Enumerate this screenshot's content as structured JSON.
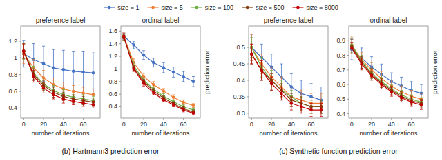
{
  "chart_data": [
    {
      "type": "line",
      "title": "preference label",
      "subtitle": "(b) Hartmann3 prediction error",
      "xlabel": "number of iterations",
      "marker": "circle",
      "x": [
        0,
        10,
        20,
        30,
        40,
        50,
        60,
        70
      ],
      "xlim": [
        -3,
        77
      ],
      "xticks": [
        0,
        20,
        40,
        60
      ],
      "ylim": [
        0.28,
        1.38
      ],
      "yticks": [
        0.4,
        0.6,
        0.8,
        1,
        1.2
      ],
      "series": [
        {
          "name": "size = 1",
          "color": "#4472c4",
          "values": [
            1.05,
            0.98,
            0.93,
            0.88,
            0.86,
            0.84,
            0.83,
            0.82
          ],
          "errors": [
            0.16,
            0.19,
            0.21,
            0.22,
            0.23,
            0.24,
            0.25,
            0.25
          ]
        },
        {
          "name": "size = 5",
          "color": "#ed7d31",
          "values": [
            1.05,
            0.88,
            0.76,
            0.68,
            0.63,
            0.6,
            0.58,
            0.56
          ],
          "errors": [
            0.12,
            0.1,
            0.09,
            0.08,
            0.08,
            0.07,
            0.07,
            0.07
          ]
        },
        {
          "name": "size = 100",
          "color": "#70ad47",
          "values": [
            1.08,
            0.82,
            0.69,
            0.61,
            0.56,
            0.53,
            0.51,
            0.49
          ],
          "errors": [
            0.1,
            0.08,
            0.07,
            0.06,
            0.06,
            0.05,
            0.05,
            0.05
          ]
        },
        {
          "name": "size = 500",
          "color": "#843c0c",
          "values": [
            1.08,
            0.8,
            0.67,
            0.59,
            0.54,
            0.51,
            0.49,
            0.47
          ],
          "errors": [
            0.09,
            0.07,
            0.06,
            0.06,
            0.05,
            0.05,
            0.05,
            0.05
          ]
        },
        {
          "name": "size = 8000",
          "color": "#c00000",
          "values": [
            1.08,
            0.78,
            0.64,
            0.56,
            0.51,
            0.48,
            0.46,
            0.44
          ],
          "errors": [
            0.08,
            0.07,
            0.06,
            0.05,
            0.05,
            0.04,
            0.04,
            0.04
          ]
        }
      ]
    },
    {
      "type": "line",
      "title": "ordinal label",
      "ylabel": "prediction error",
      "xlabel": "number of iterations",
      "marker": "circle",
      "x": [
        0,
        10,
        20,
        30,
        40,
        50,
        60,
        70
      ],
      "xlim": [
        -3,
        77
      ],
      "xticks": [
        0,
        20,
        40,
        60
      ],
      "ylim": [
        0.22,
        1.68
      ],
      "yticks": [
        0.4,
        0.6,
        0.8,
        1,
        1.2,
        1.4,
        1.6
      ],
      "series": [
        {
          "name": "size = 1",
          "color": "#4472c4",
          "values": [
            1.52,
            1.38,
            1.22,
            1.1,
            1.02,
            0.95,
            0.88,
            0.8
          ],
          "errors": [
            0.05,
            0.06,
            0.07,
            0.07,
            0.08,
            0.08,
            0.08,
            0.08
          ]
        },
        {
          "name": "size = 5",
          "color": "#ed7d31",
          "values": [
            1.52,
            1.1,
            0.88,
            0.75,
            0.65,
            0.55,
            0.47,
            0.42
          ],
          "errors": [
            0.06,
            0.06,
            0.05,
            0.05,
            0.04,
            0.04,
            0.04,
            0.03
          ]
        },
        {
          "name": "size = 100",
          "color": "#70ad47",
          "values": [
            1.5,
            1.05,
            0.82,
            0.68,
            0.57,
            0.48,
            0.4,
            0.35
          ],
          "errors": [
            0.05,
            0.05,
            0.04,
            0.04,
            0.04,
            0.03,
            0.03,
            0.03
          ]
        },
        {
          "name": "size = 500",
          "color": "#843c0c",
          "values": [
            1.5,
            1.02,
            0.8,
            0.65,
            0.54,
            0.45,
            0.37,
            0.32
          ],
          "errors": [
            0.05,
            0.04,
            0.04,
            0.04,
            0.03,
            0.03,
            0.03,
            0.03
          ]
        },
        {
          "name": "size = 8000",
          "color": "#c00000",
          "values": [
            1.52,
            1.0,
            0.77,
            0.62,
            0.51,
            0.43,
            0.35,
            0.3
          ],
          "errors": [
            0.04,
            0.04,
            0.04,
            0.03,
            0.03,
            0.03,
            0.03,
            0.03
          ]
        }
      ]
    },
    {
      "type": "line",
      "title": "preference label",
      "subtitle": "(c) Synthetic function prediction error",
      "xlabel": "number of iterations",
      "marker": "circle",
      "x": [
        0,
        10,
        20,
        30,
        40,
        50,
        60,
        70
      ],
      "xlim": [
        -3,
        77
      ],
      "xticks": [
        0,
        20,
        40,
        60
      ],
      "ylim": [
        0.285,
        0.565
      ],
      "yticks": [
        0.3,
        0.35,
        0.4,
        0.45,
        0.5
      ],
      "series": [
        {
          "name": "size = 1",
          "color": "#4472c4",
          "values": [
            0.5,
            0.47,
            0.44,
            0.41,
            0.38,
            0.36,
            0.35,
            0.34
          ],
          "errors": [
            0.04,
            0.04,
            0.04,
            0.04,
            0.04,
            0.04,
            0.04,
            0.04
          ]
        },
        {
          "name": "size = 5",
          "color": "#ed7d31",
          "values": [
            0.5,
            0.45,
            0.41,
            0.38,
            0.35,
            0.34,
            0.33,
            0.33
          ],
          "errors": [
            0.04,
            0.03,
            0.03,
            0.03,
            0.03,
            0.03,
            0.03,
            0.03
          ]
        },
        {
          "name": "size = 100",
          "color": "#70ad47",
          "values": [
            0.5,
            0.44,
            0.4,
            0.37,
            0.35,
            0.33,
            0.32,
            0.32
          ],
          "errors": [
            0.03,
            0.03,
            0.03,
            0.03,
            0.02,
            0.02,
            0.02,
            0.02
          ]
        },
        {
          "name": "size = 500",
          "color": "#843c0c",
          "values": [
            0.48,
            0.43,
            0.4,
            0.37,
            0.34,
            0.33,
            0.32,
            0.32
          ],
          "errors": [
            0.03,
            0.03,
            0.02,
            0.02,
            0.02,
            0.02,
            0.02,
            0.02
          ]
        },
        {
          "name": "size = 8000",
          "color": "#c00000",
          "values": [
            0.48,
            0.43,
            0.39,
            0.36,
            0.33,
            0.32,
            0.31,
            0.31
          ],
          "errors": [
            0.03,
            0.03,
            0.02,
            0.02,
            0.02,
            0.02,
            0.02,
            0.02
          ]
        }
      ]
    },
    {
      "type": "line",
      "title": "ordinal label",
      "ylabel": "prediction error",
      "xlabel": "number of iterations",
      "marker": "circle",
      "x": [
        0,
        10,
        20,
        30,
        40,
        50,
        60,
        70
      ],
      "xlim": [
        -3,
        77
      ],
      "xticks": [
        0,
        20,
        40,
        60
      ],
      "ylim": [
        0.37,
        1.0
      ],
      "yticks": [
        0.4,
        0.5,
        0.6,
        0.7,
        0.8,
        0.9
      ],
      "series": [
        {
          "name": "size = 1",
          "color": "#4472c4",
          "values": [
            0.84,
            0.78,
            0.72,
            0.67,
            0.62,
            0.59,
            0.56,
            0.54
          ],
          "errors": [
            0.07,
            0.07,
            0.07,
            0.07,
            0.06,
            0.06,
            0.06,
            0.06
          ]
        },
        {
          "name": "size = 5",
          "color": "#ed7d31",
          "values": [
            0.87,
            0.77,
            0.7,
            0.64,
            0.59,
            0.55,
            0.52,
            0.5
          ],
          "errors": [
            0.06,
            0.05,
            0.05,
            0.05,
            0.04,
            0.04,
            0.04,
            0.04
          ]
        },
        {
          "name": "size = 100",
          "color": "#70ad47",
          "values": [
            0.87,
            0.76,
            0.68,
            0.62,
            0.57,
            0.53,
            0.5,
            0.48
          ],
          "errors": [
            0.05,
            0.04,
            0.04,
            0.04,
            0.03,
            0.03,
            0.03,
            0.03
          ]
        },
        {
          "name": "size = 500",
          "color": "#843c0c",
          "values": [
            0.86,
            0.75,
            0.67,
            0.61,
            0.56,
            0.52,
            0.49,
            0.47
          ],
          "errors": [
            0.05,
            0.04,
            0.04,
            0.03,
            0.03,
            0.03,
            0.03,
            0.03
          ]
        },
        {
          "name": "size = 8000",
          "color": "#c00000",
          "values": [
            0.85,
            0.74,
            0.66,
            0.6,
            0.55,
            0.51,
            0.48,
            0.46
          ],
          "errors": [
            0.04,
            0.04,
            0.03,
            0.03,
            0.03,
            0.03,
            0.03,
            0.03
          ]
        }
      ]
    }
  ]
}
